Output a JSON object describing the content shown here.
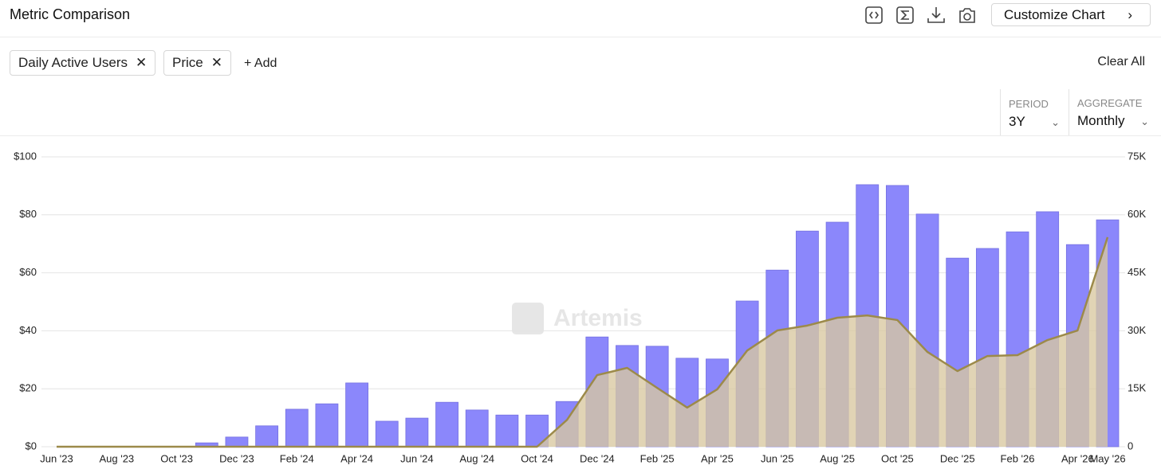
{
  "ui": {
    "title": "Metric Comparison",
    "customize": "Customize Chart",
    "chips": [
      "Daily Active Users",
      "Price"
    ],
    "add": "+ Add",
    "clear_all": "Clear All",
    "period_label": "PERIOD",
    "period_value": "3Y",
    "aggregate_label": "AGGREGATE",
    "aggregate_value": "Monthly",
    "watermark": "Artemis"
  },
  "chart_data": {
    "type": "bar-area",
    "categories": [
      "Jun '23",
      null,
      "Aug '23",
      null,
      "Oct '23",
      null,
      "Dec '23",
      null,
      "Feb '24",
      null,
      "Apr '24",
      null,
      "Jun '24",
      null,
      "Aug '24",
      null,
      "Oct '24",
      null,
      "Dec '24",
      null,
      "Feb '25",
      null,
      "Apr '25",
      null,
      "Jun '25",
      null,
      "Aug '25",
      null,
      "Oct '25",
      null,
      "Dec '25",
      null,
      "Feb '26",
      null,
      "Apr '26",
      "May '26"
    ],
    "series": [
      {
        "name": "Daily Active Users",
        "color": "#8b87fb",
        "axis": "y2",
        "values": [
          0,
          0,
          0,
          0,
          0,
          1000,
          2500,
          5400,
          9700,
          11100,
          16500,
          6600,
          7400,
          11500,
          9500,
          8200,
          8200,
          11700,
          28400,
          26200,
          26000,
          22900,
          22700,
          37700,
          45700,
          55800,
          58100,
          67800,
          67600,
          60200,
          48800,
          51300,
          55600,
          60800,
          52300,
          58700
        ]
      },
      {
        "name": "Price",
        "color": "#9c8a4a",
        "values": [
          0,
          0,
          0,
          0,
          0,
          0,
          0,
          0,
          0,
          0,
          0,
          0,
          0,
          0,
          0,
          0,
          0,
          9.3,
          24.7,
          27.2,
          20.3,
          13.5,
          19.8,
          33.2,
          40.1,
          41.8,
          44.5,
          45.3,
          43.7,
          32.7,
          26.1,
          31.3,
          31.6,
          36.8,
          40.1,
          72.3
        ]
      }
    ],
    "ylim": [
      0,
      100
    ],
    "yticks": [
      {
        "value": 0,
        "label": "$0"
      },
      {
        "value": 20,
        "label": "$20"
      },
      {
        "value": 40,
        "label": "$40"
      },
      {
        "value": 60,
        "label": "$60"
      },
      {
        "value": 80,
        "label": "$80"
      },
      {
        "value": 100,
        "label": "$100"
      }
    ],
    "y2lim": [
      0,
      75000
    ],
    "y2ticks": [
      0,
      {
        "value": 15000,
        "label": "15K"
      },
      {
        "value": 30000,
        "label": "30K"
      },
      {
        "value": 45000,
        "label": "45K"
      },
      {
        "value": 60000,
        "label": "60K"
      },
      {
        "value": 75000,
        "label": "75K"
      }
    ],
    "grid": true
  }
}
